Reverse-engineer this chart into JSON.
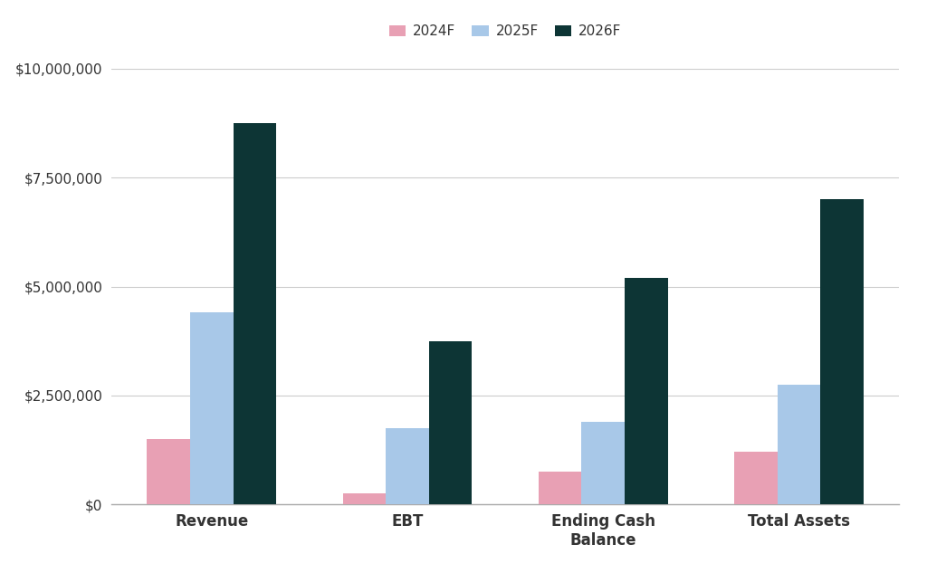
{
  "categories": [
    "Revenue",
    "EBT",
    "Ending Cash\nBalance",
    "Total Assets"
  ],
  "series": {
    "2024F": [
      1500000,
      250000,
      750000,
      1200000
    ],
    "2025F": [
      4400000,
      1750000,
      1900000,
      2750000
    ],
    "2026F": [
      8750000,
      3750000,
      5200000,
      7000000
    ]
  },
  "colors": {
    "2024F": "#e8a0b4",
    "2025F": "#a8c8e8",
    "2026F": "#0d3535"
  },
  "ylim": [
    0,
    10000000
  ],
  "yticks": [
    0,
    2500000,
    5000000,
    7500000,
    10000000
  ],
  "ytick_labels": [
    "$0",
    "$2,500,000",
    "$5,000,000",
    "$7,500,000",
    "$10,000,000"
  ],
  "bar_width": 0.22,
  "background_color": "#ffffff",
  "grid_color": "#cccccc",
  "legend_labels": [
    "2024F",
    "2025F",
    "2026F"
  ],
  "tick_fontsize": 11,
  "legend_fontsize": 11,
  "xlabel_fontsize": 12
}
